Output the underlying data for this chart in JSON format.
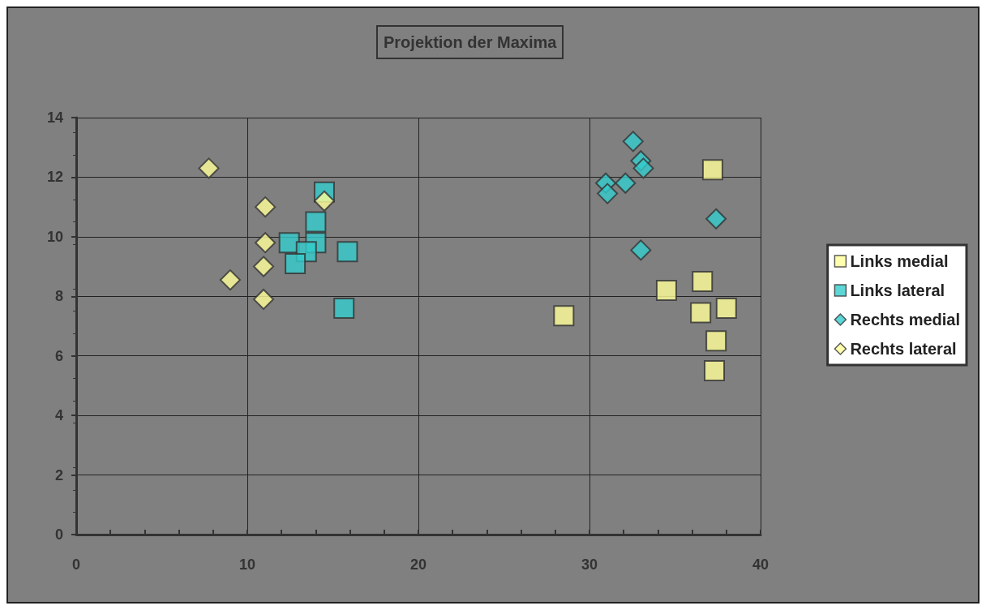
{
  "chart_data": {
    "type": "scatter",
    "title": "Projektion der Maxima",
    "xlim": [
      0,
      40
    ],
    "xticks": [
      0,
      10,
      20,
      30,
      40
    ],
    "ylim": [
      0,
      14
    ],
    "yticks": [
      0,
      2,
      4,
      6,
      8,
      10,
      12,
      14
    ],
    "grid": true,
    "legend": "right",
    "series": [
      {
        "name": "Links medial",
        "color": "#ffff99",
        "marker": "square",
        "x": [
          28.5,
          37.2,
          36.6,
          34.5,
          36.5,
          38.0,
          37.4,
          37.3
        ],
        "values": [
          7.35,
          12.25,
          8.5,
          8.2,
          7.45,
          7.6,
          6.5,
          5.5
        ]
      },
      {
        "name": "Links lateral",
        "color": "#33cccc",
        "marker": "square",
        "x": [
          14.5,
          14.0,
          14.0,
          12.45,
          13.45,
          12.8,
          15.85,
          15.65
        ],
        "values": [
          11.5,
          10.5,
          9.8,
          9.8,
          9.5,
          9.1,
          9.5,
          7.6
        ]
      },
      {
        "name": "Rechts medial",
        "color": "#33cccc",
        "marker": "diamond",
        "x": [
          32.55,
          33.0,
          33.15,
          30.95,
          31.05,
          32.1,
          37.4,
          33.0
        ],
        "values": [
          13.2,
          12.55,
          12.3,
          11.8,
          11.45,
          11.8,
          10.6,
          9.55
        ]
      },
      {
        "name": "Rechts lateral",
        "color": "#ffff99",
        "marker": "diamond",
        "x": [
          7.75,
          11.05,
          14.5,
          11.05,
          10.95,
          9.0,
          10.95
        ],
        "values": [
          12.3,
          11.0,
          11.2,
          9.8,
          9.0,
          8.55,
          7.9
        ]
      }
    ]
  }
}
